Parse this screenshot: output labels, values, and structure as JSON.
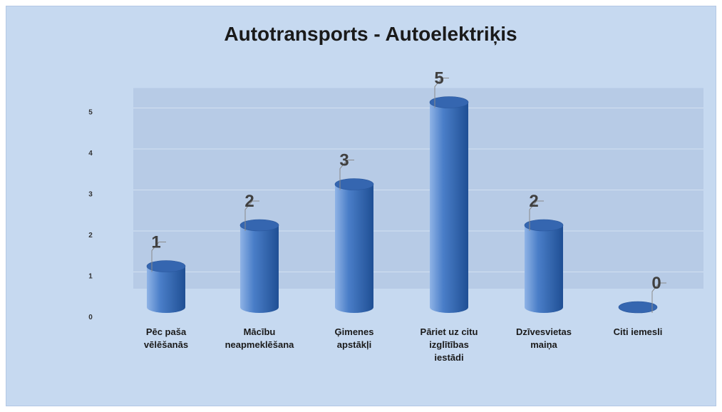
{
  "chart_data": {
    "type": "bar",
    "title": "Autotransports - Autoelektriķis",
    "categories": [
      [
        "Pēc paša",
        "vēlēšanās"
      ],
      [
        "Mācību",
        "neapmeklēšana"
      ],
      [
        "Ģimenes",
        "apstākļi"
      ],
      [
        "Pāriet uz citu",
        "izglītības",
        "iestādi"
      ],
      [
        "Dzīvesvietas",
        "maiņa"
      ],
      [
        "Citi iemesli"
      ]
    ],
    "values": [
      1,
      2,
      3,
      5,
      2,
      0
    ],
    "yticks": [
      0,
      1,
      2,
      3,
      4,
      5
    ],
    "ylim": [
      0,
      5
    ],
    "xlabel": "",
    "ylabel": "",
    "grid": true,
    "legend": "none",
    "colors": {
      "bar_light": "#8fb3e6",
      "bar_mid": "#4a7ec8",
      "bar_dark": "#1f4f94",
      "bar_top": "#3566b0",
      "plot_band": "#b7cbe6",
      "grid": "#d3e0f1",
      "frame_bg": "#c6d9f0"
    }
  }
}
